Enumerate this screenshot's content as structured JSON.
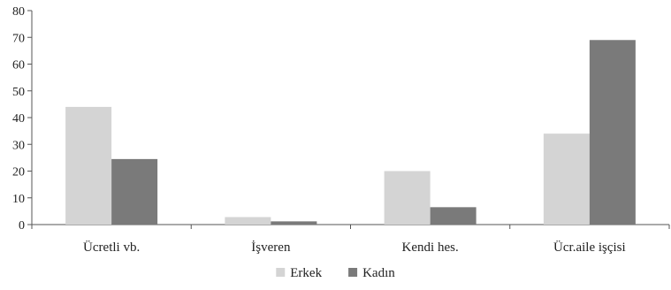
{
  "chart_data": {
    "type": "bar",
    "categories": [
      "Ücretli vb.",
      "İşveren",
      "Kendi hes.",
      "Ücr.aile işçisi"
    ],
    "series": [
      {
        "name": "Erkek",
        "values": [
          44,
          2.8,
          20,
          34
        ]
      },
      {
        "name": "Kadın",
        "values": [
          24.5,
          1.2,
          6.5,
          69
        ]
      }
    ],
    "title": "",
    "xlabel": "",
    "ylabel": "",
    "ylim": [
      0,
      80
    ],
    "yticks": [
      0,
      10,
      20,
      30,
      40,
      50,
      60,
      70,
      80
    ],
    "grid": false,
    "legend_position": "bottom",
    "colors": {
      "Erkek": "#d4d4d4",
      "Kadın": "#7a7a7a"
    }
  }
}
